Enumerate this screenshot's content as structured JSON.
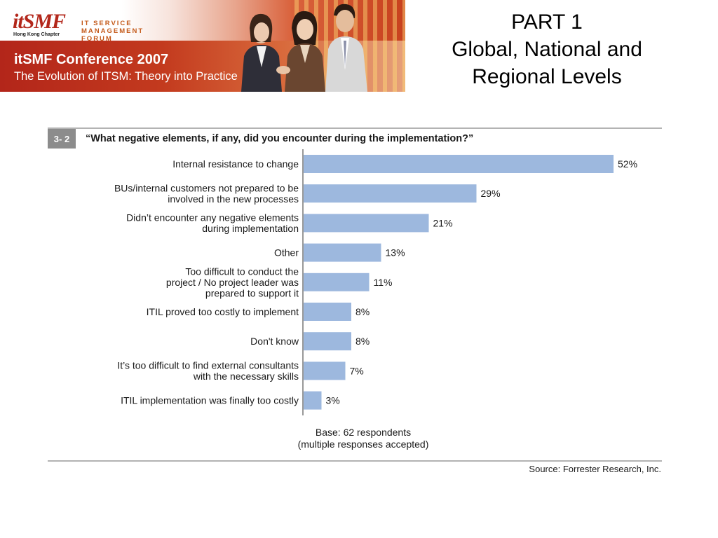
{
  "banner": {
    "logo_text": "itSMF",
    "logo_subtext": "Hong Kong Chapter",
    "forum_lines": [
      "IT SERVICE",
      "MANAGEMENT",
      "FORUM"
    ],
    "conference_title": "itSMF Conference 2007",
    "conference_subtitle": "The Evolution of ITSM: Theory into Practice"
  },
  "slide": {
    "title_lines": [
      "PART 1",
      "Global, National and",
      "Regional Levels"
    ]
  },
  "colors": {
    "bar": "#9db8de",
    "figure_number_bg": "#8c8c8c",
    "rule": "#9a9a9a"
  },
  "chart_data": {
    "type": "bar",
    "orientation": "horizontal",
    "figure_number": "3- 2",
    "title": "“What negative elements, if any, did you encounter during the implementation?”",
    "categories": [
      [
        "Internal resistance to change"
      ],
      [
        "BUs/internal customers not prepared to be",
        "involved in the new processes"
      ],
      [
        "Didn’t encounter any negative elements",
        "during implementation"
      ],
      [
        "Other"
      ],
      [
        "Too difficult to conduct the",
        "project / No project leader was",
        "prepared to support it"
      ],
      [
        "ITIL proved too costly to implement"
      ],
      [
        "Don't know"
      ],
      [
        "It’s too difficult to find external consultants",
        "with the necessary skills"
      ],
      [
        "ITIL implementation was finally too costly"
      ]
    ],
    "values": [
      52,
      29,
      21,
      13,
      11,
      8,
      8,
      7,
      3
    ],
    "value_labels": [
      "52%",
      "29%",
      "21%",
      "13%",
      "11%",
      "8%",
      "8%",
      "7%",
      "3%"
    ],
    "unit": "%",
    "xlim": [
      0,
      60
    ],
    "grid": false,
    "legend": "none",
    "base_note": [
      "Base: 62 respondents",
      "(multiple responses accepted)"
    ],
    "source": "Source: Forrester Research, Inc."
  }
}
